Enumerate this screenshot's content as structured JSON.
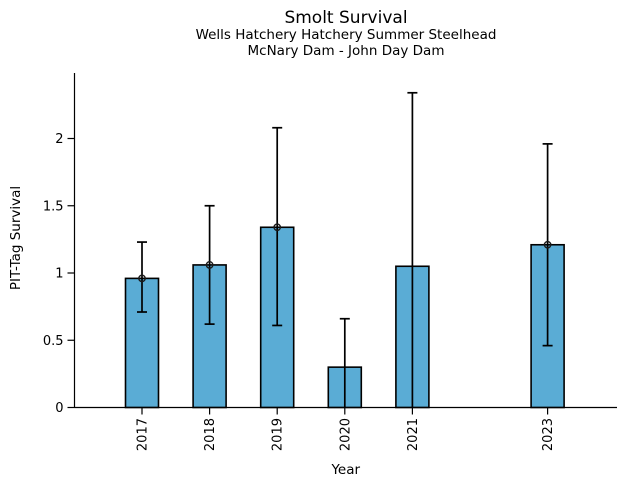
{
  "chart_data": {
    "type": "bar",
    "title": "Smolt Survival",
    "subtitle_line1": "Wells Hatchery Hatchery Summer Steelhead",
    "subtitle_line2": "McNary Dam - John Day Dam",
    "xlabel": "Year",
    "ylabel": "PIT-Tag Survival",
    "categories": [
      2017,
      2018,
      2019,
      2020,
      2021,
      2023
    ],
    "values": [
      0.96,
      1.06,
      1.34,
      0.3,
      1.05,
      1.21
    ],
    "error_low": [
      0.71,
      0.62,
      0.61,
      0,
      0,
      0.46
    ],
    "error_high": [
      1.23,
      1.5,
      2.08,
      0.66,
      2.34,
      1.96
    ],
    "point_markers": [
      true,
      true,
      true,
      false,
      false,
      true
    ],
    "ytick_values": [
      0,
      0.5,
      1,
      1.5,
      2
    ],
    "ytick_labels": [
      "0",
      "0.5",
      "1",
      "1.5",
      "2"
    ],
    "ylim": [
      0,
      2.48
    ],
    "grid": false,
    "legend": null,
    "bar_color": "#5AACD5",
    "bar_edge_color": "#000000",
    "error_color": "#000000",
    "text_color": "#000000"
  }
}
